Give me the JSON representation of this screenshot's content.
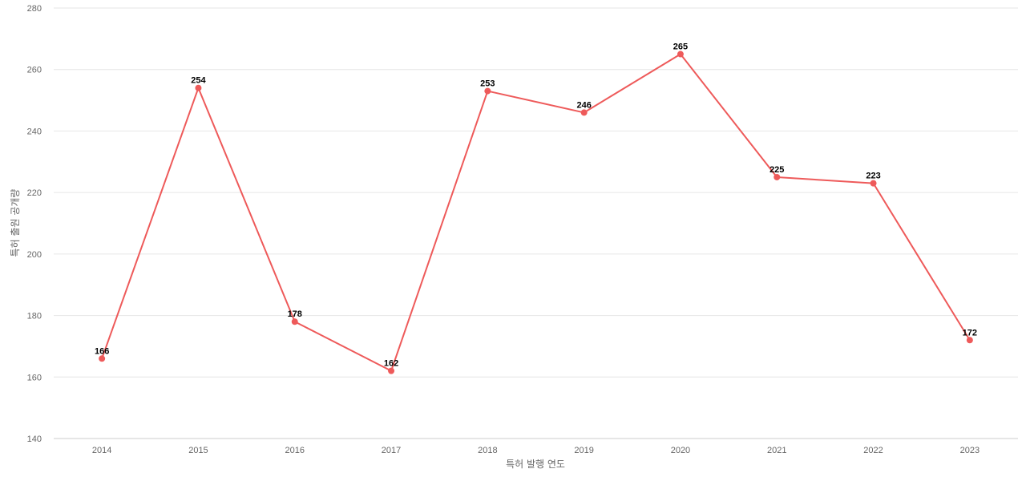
{
  "chart_data": {
    "type": "line",
    "title": "",
    "xlabel": "특허 발행 연도",
    "ylabel": "특허 출원 공개량",
    "categories": [
      "2014",
      "2015",
      "2016",
      "2017",
      "2018",
      "2019",
      "2020",
      "2021",
      "2022",
      "2023"
    ],
    "values": [
      166,
      254,
      178,
      162,
      253,
      246,
      265,
      225,
      223,
      172
    ],
    "ylim": [
      140,
      280
    ],
    "yticks": [
      140,
      160,
      180,
      200,
      220,
      240,
      260,
      280
    ],
    "grid": true,
    "data_labels": true,
    "colors": {
      "line": "#ee5a5a",
      "point": "#ee5a5a"
    }
  }
}
